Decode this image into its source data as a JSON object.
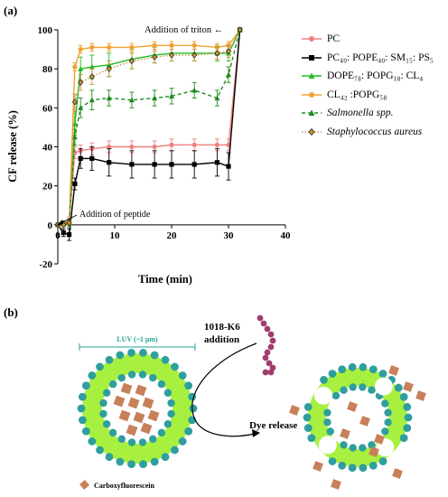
{
  "panel_a": {
    "label": "(a)",
    "annotation_triton": "Addition of triton ←",
    "annotation_peptide": "Addition of peptide",
    "legend": [
      {
        "text": "PC",
        "color": "#f08080",
        "marker": "circle",
        "dash": "solid",
        "italic": false
      },
      {
        "text": "PC₄₀: POPE₄₀: SM₁₅: PS₅",
        "color": "#000000",
        "marker": "square",
        "dash": "solid",
        "italic": false
      },
      {
        "text": "DOPE₇₈: POPG₁₈: CL₄",
        "color": "#22bb22",
        "marker": "triangle",
        "dash": "solid",
        "italic": false
      },
      {
        "text": "CL₄₂ :POPG₅₈",
        "color": "#f0a030",
        "marker": "circle",
        "dash": "solid",
        "italic": false
      },
      {
        "text": "Salmonella spp.",
        "color": "#1e8a1e",
        "marker": "triangle",
        "dash": "dashed",
        "italic": true
      },
      {
        "text": "Staphylococcus aureus",
        "color": "#c8963c",
        "marker": "diamond",
        "dash": "dotted",
        "italic": true
      }
    ]
  },
  "chart_data": {
    "type": "line",
    "xlabel": "Time (min)",
    "ylabel": "CF release (%)",
    "xlim": [
      0,
      40
    ],
    "ylim": [
      -20,
      100
    ],
    "xticks": [
      0,
      10,
      20,
      30,
      40
    ],
    "yticks": [
      -20,
      0,
      20,
      40,
      60,
      80,
      100
    ],
    "x": [
      0,
      1,
      2,
      3,
      4,
      6,
      9,
      13,
      17,
      20,
      24,
      28,
      30,
      32
    ],
    "series": [
      {
        "name": "PC",
        "color": "#f08080",
        "values": [
          0,
          1,
          2,
          37,
          38,
          39,
          40,
          40,
          40,
          41,
          41,
          41,
          41,
          100
        ],
        "err": [
          1,
          1,
          2,
          3,
          3,
          3,
          3,
          3,
          3,
          3,
          3,
          3,
          3,
          0
        ]
      },
      {
        "name": "PC40: POPE40: SM15: PS5",
        "color": "#000000",
        "values": [
          0,
          -4,
          -5,
          21,
          34,
          34,
          32,
          31,
          31,
          31,
          31,
          32,
          30,
          100
        ],
        "err": [
          1,
          2,
          3,
          3,
          5,
          6,
          7,
          7,
          7,
          7,
          7,
          7,
          7,
          0
        ]
      },
      {
        "name": "DOPE78: POPG18: CL4",
        "color": "#22bb22",
        "values": [
          0,
          1,
          1,
          52,
          80,
          81,
          82,
          85,
          87,
          88,
          88,
          88,
          88,
          100
        ],
        "err": [
          1,
          1,
          2,
          6,
          6,
          6,
          6,
          5,
          4,
          4,
          4,
          4,
          4,
          0
        ]
      },
      {
        "name": "CL42 :POPG58",
        "color": "#f0a030",
        "values": [
          0,
          0,
          1,
          81,
          90,
          91,
          91,
          91,
          92,
          92,
          92,
          91,
          92,
          100
        ],
        "err": [
          1,
          1,
          1,
          2,
          2,
          2,
          2,
          2,
          2,
          2,
          2,
          2,
          2,
          0
        ]
      },
      {
        "name": "Salmonella spp.",
        "color": "#1e8a1e",
        "values": [
          0,
          1,
          1,
          45,
          60,
          64,
          65,
          64,
          65,
          66,
          69,
          65,
          77,
          100
        ],
        "err": [
          1,
          1,
          2,
          4,
          5,
          5,
          4,
          4,
          4,
          4,
          4,
          4,
          4,
          0
        ]
      },
      {
        "name": "Staphylococcus aureus",
        "color": "#c8963c",
        "values": [
          0,
          0,
          1,
          63,
          73,
          76,
          80,
          84,
          86,
          87,
          87,
          88,
          89,
          100
        ],
        "err": [
          1,
          1,
          1,
          4,
          4,
          4,
          4,
          4,
          3,
          3,
          3,
          3,
          3,
          0
        ]
      }
    ]
  },
  "panel_b": {
    "label": "(b)",
    "luv_label": "LUV (~1 μm)",
    "peptide_label_line1": "1018-K6",
    "peptide_label_line2": "addition",
    "dye_release_label": "Dye release",
    "legend_label": "Carboxyfluorescein",
    "colors": {
      "lipid_head": "#2e9e9e",
      "bilayer": "#a8f040",
      "dye": "#c8805a",
      "peptide": "#a03c6e",
      "measure_line": "#26a69a"
    }
  }
}
